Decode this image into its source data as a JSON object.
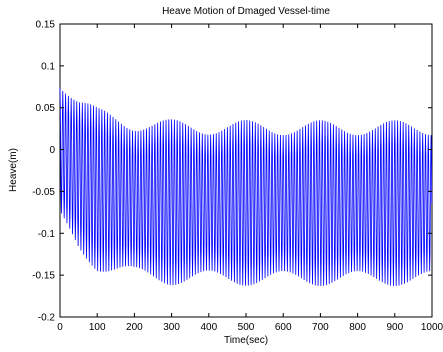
{
  "chart_data": {
    "type": "line",
    "title": "Heave Motion of Dmaged Vessel-time",
    "xlabel": "Time(sec)",
    "ylabel": "Heave(m)",
    "xlim": [
      0,
      1000
    ],
    "ylim": [
      -0.2,
      0.15
    ],
    "xticks": [
      0,
      100,
      200,
      300,
      400,
      500,
      600,
      700,
      800,
      900,
      1000
    ],
    "yticks": [
      -0.2,
      -0.15,
      -0.1,
      -0.05,
      0,
      0.05,
      0.1,
      0.15
    ],
    "grid": false,
    "series": [
      {
        "color": "#0000ff",
        "oscillation_period_sec": 7.5,
        "envelope_points": [
          {
            "t": 0,
            "max": 0.09,
            "min": -0.09
          },
          {
            "t": 50,
            "max": 0.065,
            "min": -0.125
          },
          {
            "t": 100,
            "max": 0.05,
            "min": -0.145
          },
          {
            "t": 200,
            "max": 0.04,
            "min": -0.158
          },
          {
            "t": 300,
            "max": 0.036,
            "min": -0.162
          },
          {
            "t": 600,
            "max": 0.035,
            "min": -0.163
          },
          {
            "t": 1000,
            "max": 0.035,
            "min": -0.163
          }
        ],
        "modulation_period_sec": 200,
        "modulation_depth_fraction": 0.18
      }
    ]
  }
}
